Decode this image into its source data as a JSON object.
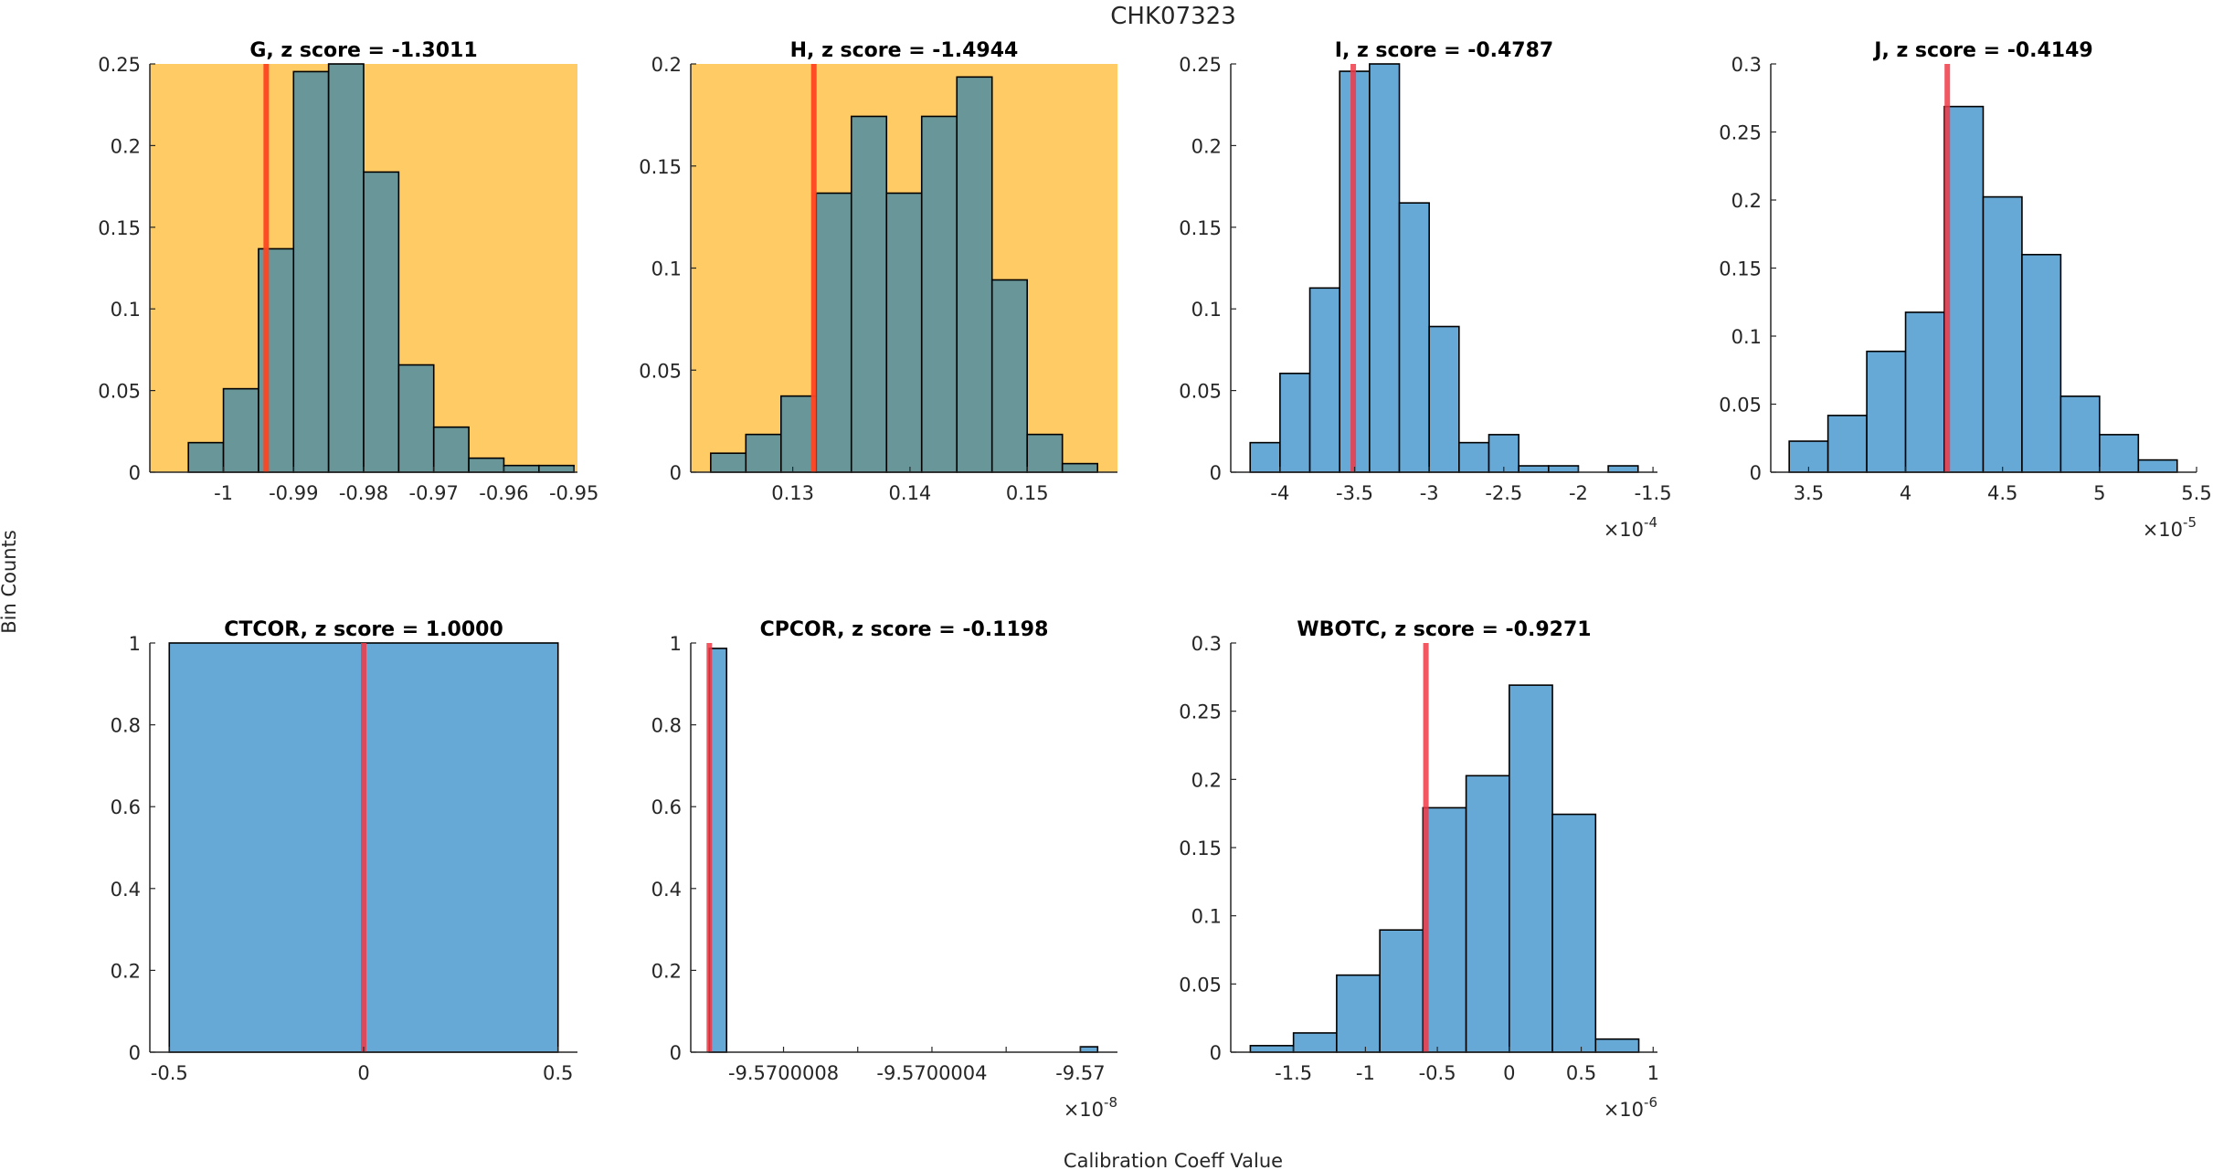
{
  "figure": {
    "title": "CHK07323",
    "ylabel": "Bin Counts",
    "xlabel": "Calibration Coeff Value"
  },
  "colors": {
    "highlight_background": "#FECB65",
    "highlight_bar": "#689699",
    "normal_bar": "#67A9D6",
    "bar_edge": "#000000",
    "marker_line_highlight": "#FF4422",
    "marker_line_normal": "#F03A47",
    "axis": "#262626"
  },
  "chart_data": [
    {
      "type": "bar",
      "subtype": "histogram",
      "title": "G, z score = -1.3011",
      "highlighted": true,
      "bin_edges": [
        -1.005,
        -1.0,
        -0.995,
        -0.99,
        -0.985,
        -0.98,
        -0.975,
        -0.97,
        -0.965,
        -0.96,
        -0.955,
        -0.95
      ],
      "values": [
        0.0181,
        0.0511,
        0.1368,
        0.2453,
        0.25,
        0.1838,
        0.0657,
        0.0276,
        0.0086,
        0.0041,
        0.0041
      ],
      "marker_value": -0.9939,
      "xlim": [
        -1.0105,
        -0.9495
      ],
      "ylim": [
        0,
        0.25
      ],
      "xticks": [
        -1,
        -0.99,
        -0.98,
        -0.97,
        -0.96,
        -0.95
      ],
      "xtick_labels": [
        "-1",
        "-0.99",
        "-0.98",
        "-0.97",
        "-0.96",
        "-0.95"
      ],
      "yticks": [
        0,
        0.05,
        0.1,
        0.15,
        0.2,
        0.25
      ],
      "ytick_labels": [
        "0",
        "0.05",
        "0.1",
        "0.15",
        "0.2",
        "0.25"
      ],
      "x_exponent": ""
    },
    {
      "type": "bar",
      "subtype": "histogram",
      "title": "H, z score = -1.4944",
      "highlighted": true,
      "bin_edges": [
        0.123,
        0.126,
        0.129,
        0.132,
        0.135,
        0.138,
        0.141,
        0.144,
        0.147,
        0.15,
        0.153,
        0.156
      ],
      "values": [
        0.0093,
        0.0185,
        0.0373,
        0.1367,
        0.1743,
        0.1367,
        0.1743,
        0.1936,
        0.0942,
        0.0185,
        0.0042
      ],
      "marker_value": 0.1318,
      "xlim": [
        0.1213,
        0.1577
      ],
      "ylim": [
        0,
        0.2
      ],
      "xticks": [
        0.13,
        0.14,
        0.15
      ],
      "xtick_labels": [
        "0.13",
        "0.14",
        "0.15"
      ],
      "yticks": [
        0,
        0.05,
        0.1,
        0.15,
        0.2
      ],
      "ytick_labels": [
        "0",
        "0.05",
        "0.1",
        "0.15",
        "0.2"
      ],
      "x_exponent": ""
    },
    {
      "type": "bar",
      "subtype": "histogram",
      "title": "I, z score = -0.4787",
      "highlighted": false,
      "bin_edges": [
        -4.2,
        -4.0,
        -3.8,
        -3.6,
        -3.4,
        -3.2,
        -3.0,
        -2.8,
        -2.6,
        -2.4,
        -2.2,
        -2.0,
        -1.8,
        -1.6
      ],
      "values": [
        0.0181,
        0.0605,
        0.1128,
        0.2455,
        0.25,
        0.1649,
        0.0892,
        0.0181,
        0.023,
        0.0039,
        0.0039,
        0,
        0.0039
      ],
      "marker_value": -3.509,
      "xlim": [
        -4.33,
        -1.47
      ],
      "ylim": [
        0,
        0.25
      ],
      "xticks": [
        -4,
        -3.5,
        -3,
        -2.5,
        -2,
        -1.5
      ],
      "xtick_labels": [
        "-4",
        "-3.5",
        "-3",
        "-2.5",
        "-2",
        "-1.5"
      ],
      "yticks": [
        0,
        0.05,
        0.1,
        0.15,
        0.2,
        0.25
      ],
      "ytick_labels": [
        "0",
        "0.05",
        "0.1",
        "0.15",
        "0.2",
        "0.25"
      ],
      "x_exponent": "-4"
    },
    {
      "type": "bar",
      "subtype": "histogram",
      "title": "J, z score = -0.4149",
      "highlighted": false,
      "bin_edges": [
        3.4,
        3.6,
        3.8,
        4.0,
        4.2,
        4.4,
        4.6,
        4.8,
        5.0,
        5.2,
        5.4
      ],
      "values": [
        0.0228,
        0.0417,
        0.0888,
        0.1175,
        0.2687,
        0.2023,
        0.1599,
        0.0558,
        0.0276,
        0.009
      ],
      "marker_value": 4.215,
      "xlim": [
        3.305,
        5.5
      ],
      "ylim": [
        0,
        0.3
      ],
      "xticks": [
        3.5,
        4,
        4.5,
        5,
        5.5
      ],
      "xtick_labels": [
        "3.5",
        "4",
        "4.5",
        "5",
        "5.5"
      ],
      "yticks": [
        0,
        0.05,
        0.1,
        0.15,
        0.2,
        0.25,
        0.3
      ],
      "ytick_labels": [
        "0",
        "0.05",
        "0.1",
        "0.15",
        "0.2",
        "0.25",
        "0.3"
      ],
      "x_exponent": "-5"
    },
    {
      "type": "bar",
      "subtype": "histogram",
      "title": "CTCOR, z score = 1.0000",
      "highlighted": false,
      "bin_edges": [
        -0.5,
        0.5
      ],
      "values": [
        1
      ],
      "marker_value": 0,
      "xlim": [
        -0.55,
        0.55
      ],
      "ylim": [
        0,
        1
      ],
      "xticks": [
        -0.5,
        0,
        0.5
      ],
      "xtick_labels": [
        "-0.5",
        "0",
        "0.5"
      ],
      "yticks": [
        0,
        0.2,
        0.4,
        0.6,
        0.8,
        1
      ],
      "ytick_labels": [
        "0",
        "0.2",
        "0.4",
        "0.6",
        "0.8",
        "1"
      ],
      "x_exponent": ""
    },
    {
      "type": "bar",
      "subtype": "histogram",
      "title": "CPCOR, z score = -0.1198",
      "highlighted": false,
      "bin_edges": [
        -9.570001,
        -9.5700009534,
        -9.57,
        -9.5699999534
      ],
      "values": [
        0.9868,
        0,
        0.0132
      ],
      "marker_value": -9.570001,
      "xlim": [
        -9.57000105,
        -9.5699999
      ],
      "ylim": [
        0,
        1
      ],
      "xticks": [
        -9.5700008,
        -9.5700006,
        -9.5700004,
        -9.5700002,
        -9.57
      ],
      "xtick_labels": [
        "-9.5700008",
        "",
        "-9.5700004",
        "",
        "-9.57"
      ],
      "yticks": [
        0,
        0.2,
        0.4,
        0.6,
        0.8,
        1
      ],
      "ytick_labels": [
        "0",
        "0.2",
        "0.4",
        "0.6",
        "0.8",
        "1"
      ],
      "x_exponent": "-8"
    },
    {
      "type": "bar",
      "subtype": "histogram",
      "title": "WBOTC, z score = -0.9271",
      "highlighted": false,
      "bin_edges": [
        -1.8,
        -1.5,
        -1.2,
        -0.9,
        -0.6,
        -0.3,
        0,
        0.3,
        0.6,
        0.9
      ],
      "values": [
        0.0048,
        0.0141,
        0.0565,
        0.0896,
        0.1792,
        0.2027,
        0.2691,
        0.1744,
        0.0096
      ],
      "marker_value": -0.5795,
      "xlim": [
        -1.936,
        1.03
      ],
      "ylim": [
        0,
        0.3
      ],
      "xticks": [
        -1.5,
        -1,
        -0.5,
        0,
        0.5,
        1
      ],
      "xtick_labels": [
        "-1.5",
        "-1",
        "-0.5",
        "0",
        "0.5",
        "1"
      ],
      "yticks": [
        0,
        0.05,
        0.1,
        0.15,
        0.2,
        0.25,
        0.3
      ],
      "ytick_labels": [
        "0",
        "0.05",
        "0.1",
        "0.15",
        "0.2",
        "0.25",
        "0.3"
      ],
      "x_exponent": "-6"
    }
  ]
}
